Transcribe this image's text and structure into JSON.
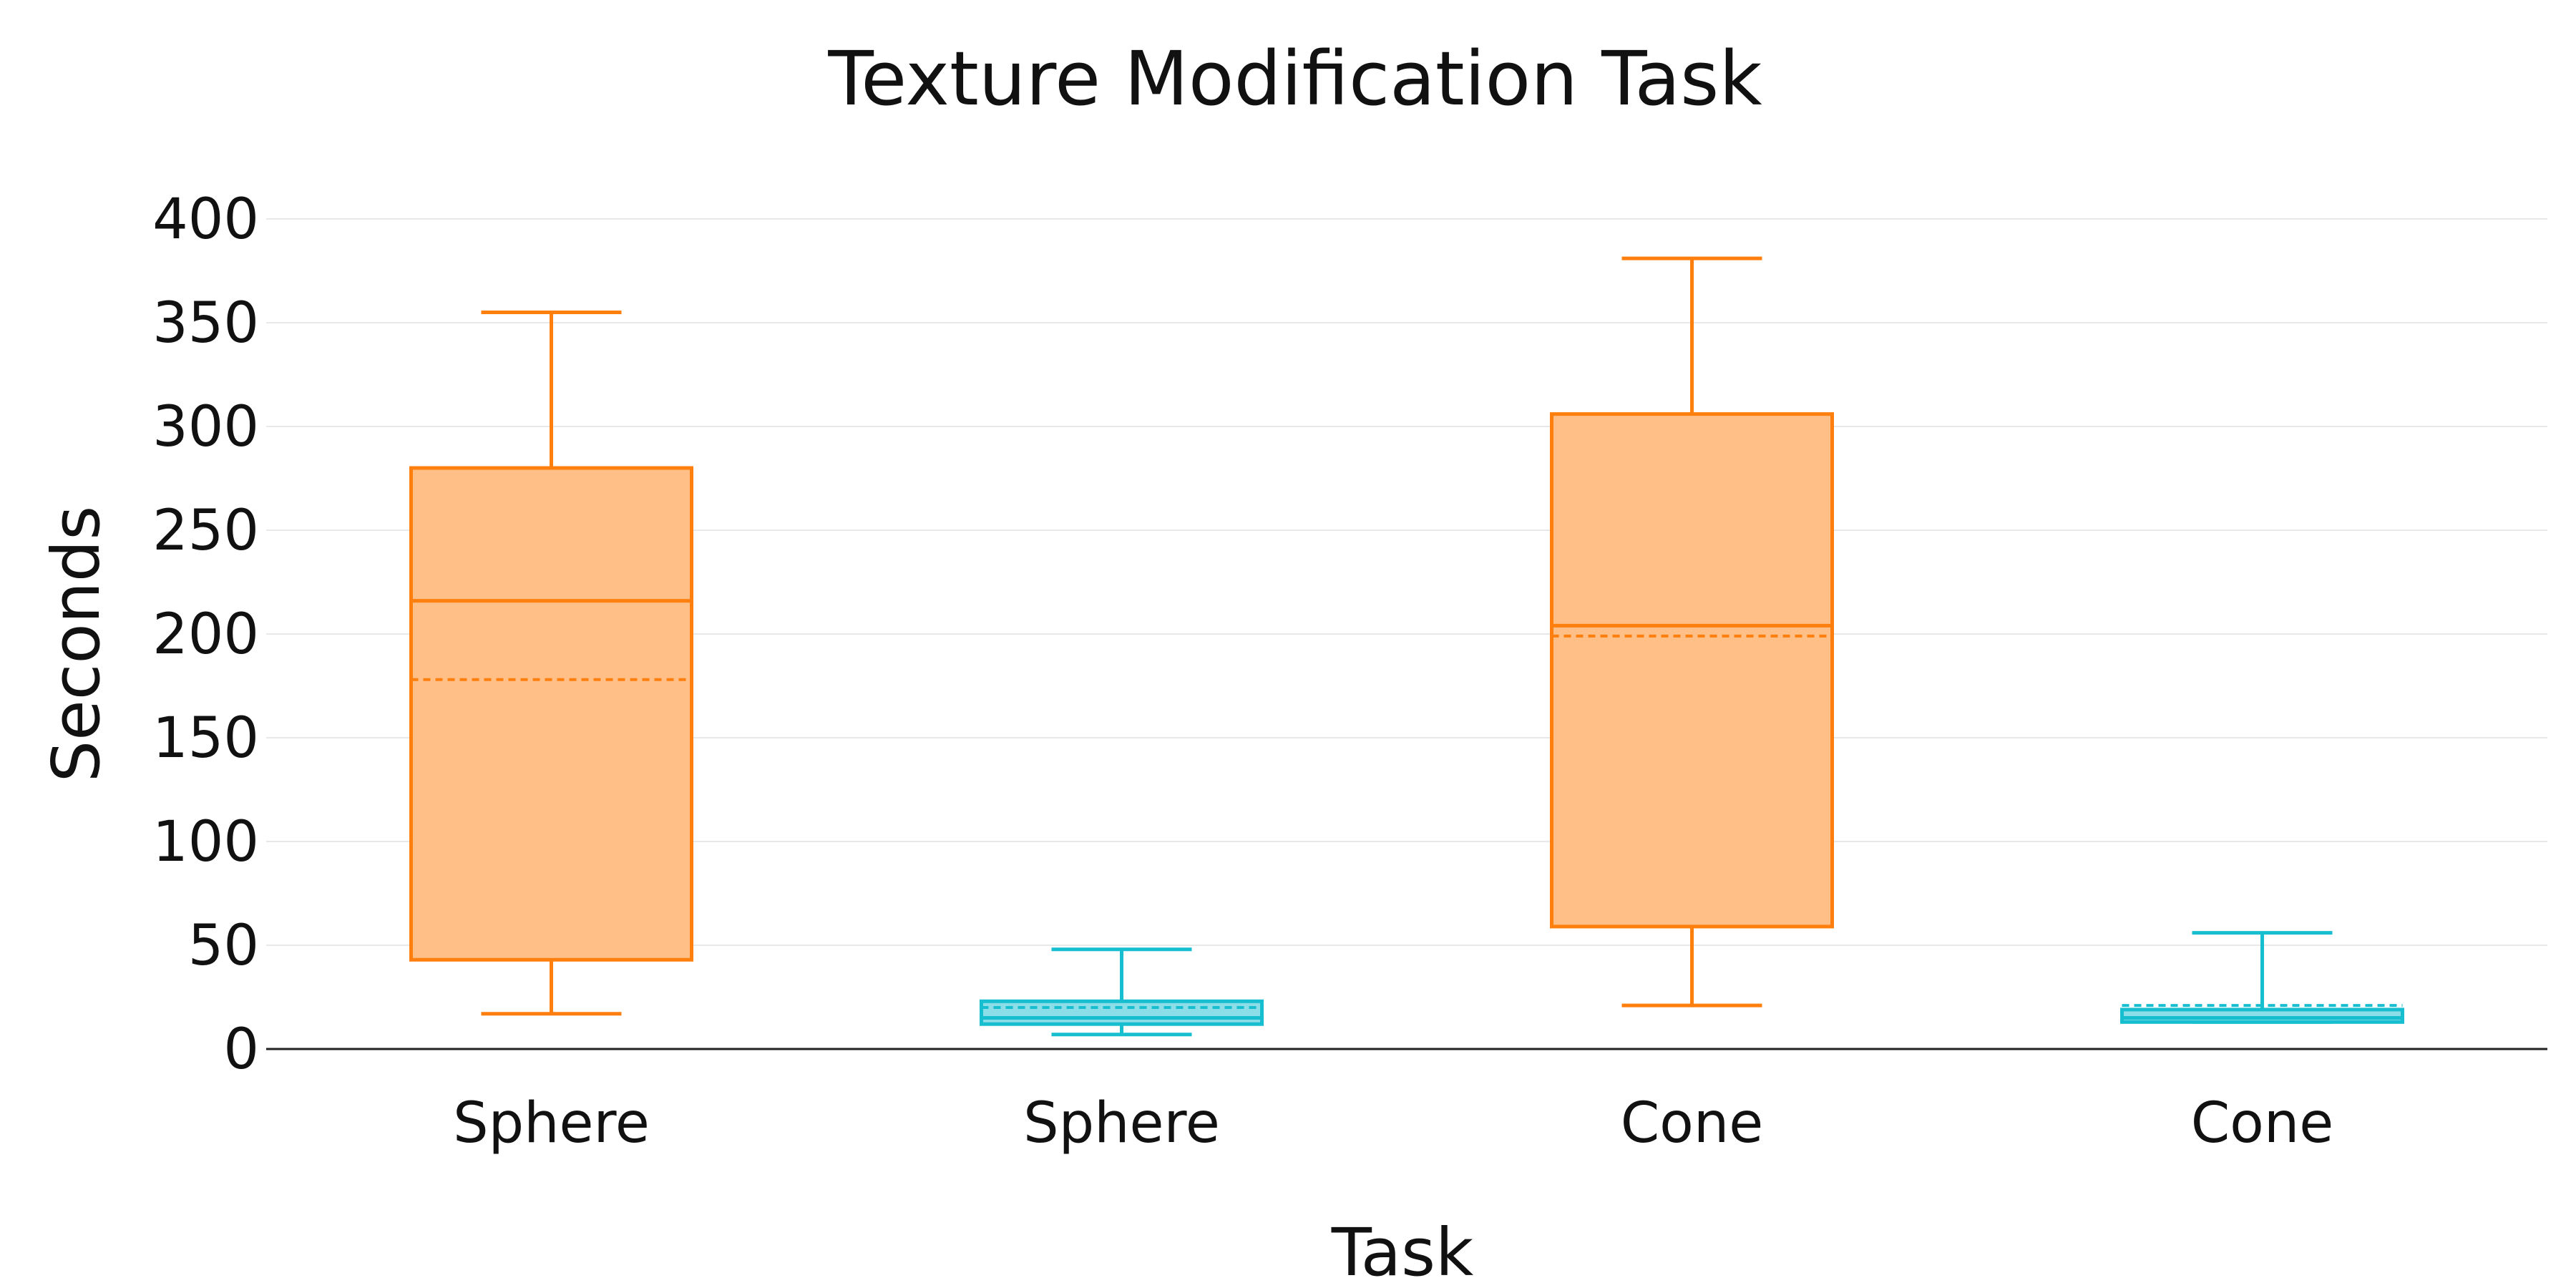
{
  "chart_data": {
    "type": "box",
    "title": "Texture Modification Task",
    "xlabel": "Task",
    "ylabel": "Seconds",
    "ylim": [
      0,
      400
    ],
    "yticks": [
      0,
      50,
      100,
      150,
      200,
      250,
      300,
      350,
      400
    ],
    "grid": true,
    "legend": "none",
    "colors": {
      "orange": "#ff7f0e",
      "orange_fill": "#ffbf87",
      "teal": "#17becf",
      "teal_fill": "#8bdee7"
    },
    "boxes": [
      {
        "category": "Sphere",
        "color": "orange",
        "min": 17,
        "q1": 43,
        "median": 216,
        "mean": 178,
        "q3": 280,
        "max": 355
      },
      {
        "category": "Sphere",
        "color": "teal",
        "min": 7,
        "q1": 12,
        "median": 15,
        "mean": 20,
        "q3": 23,
        "max": 48
      },
      {
        "category": "Cone",
        "color": "orange",
        "min": 21,
        "q1": 59,
        "median": 204,
        "mean": 199,
        "q3": 306,
        "max": 381
      },
      {
        "category": "Cone",
        "color": "teal",
        "min": 13,
        "q1": 13,
        "median": 15,
        "mean": 21,
        "q3": 19,
        "max": 56
      }
    ]
  }
}
